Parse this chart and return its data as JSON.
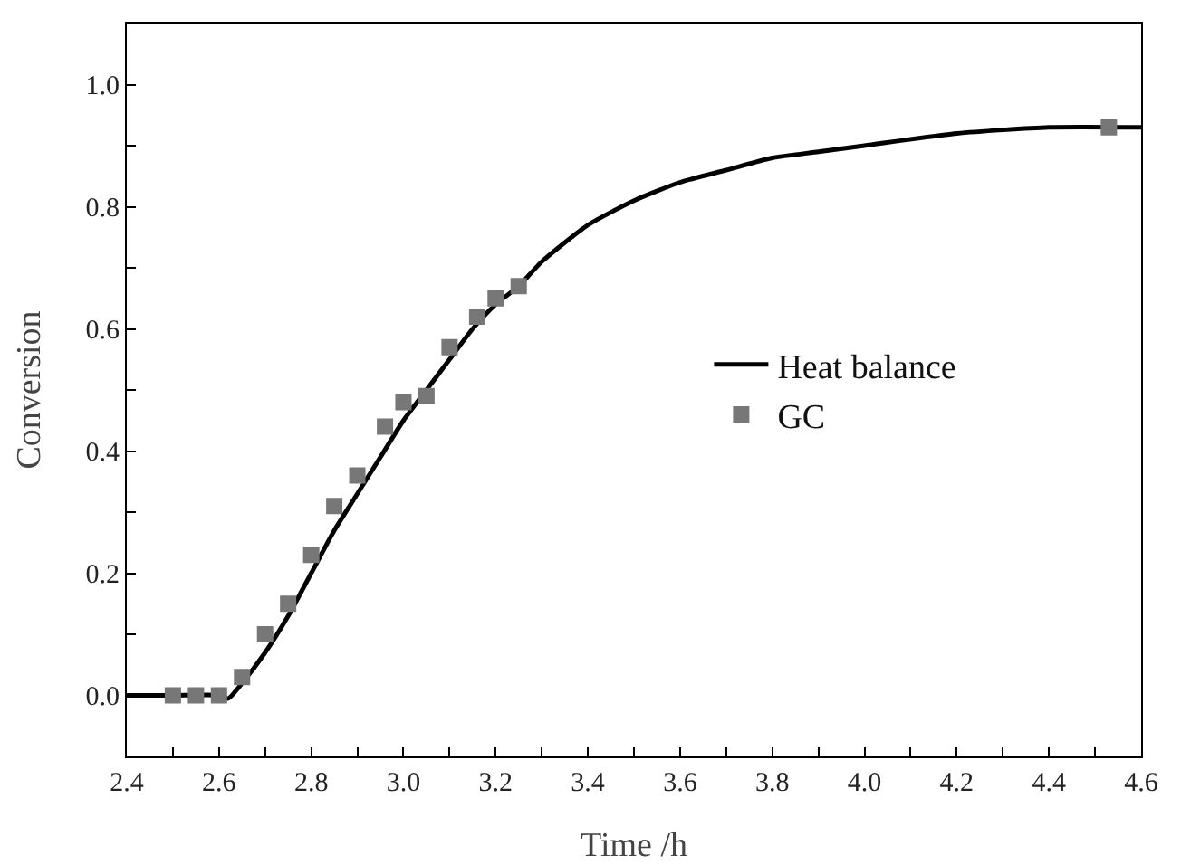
{
  "chart_data": {
    "type": "line",
    "xlabel": "Time /h",
    "ylabel": "Conversion",
    "xlim": [
      2.4,
      4.6
    ],
    "ylim": [
      -0.1,
      1.1
    ],
    "xticks": [
      {
        "value": 2.4,
        "label": "2.4"
      },
      {
        "value": 2.5,
        "label": null
      },
      {
        "value": 2.6,
        "label": "2.6"
      },
      {
        "value": 2.7,
        "label": null
      },
      {
        "value": 2.8,
        "label": "2.8"
      },
      {
        "value": 2.9,
        "label": null
      },
      {
        "value": 3.0,
        "label": "3.0"
      },
      {
        "value": 3.1,
        "label": null
      },
      {
        "value": 3.2,
        "label": "3.2"
      },
      {
        "value": 3.3,
        "label": null
      },
      {
        "value": 3.4,
        "label": "3.4"
      },
      {
        "value": 3.5,
        "label": null
      },
      {
        "value": 3.6,
        "label": "3.6"
      },
      {
        "value": 3.7,
        "label": null
      },
      {
        "value": 3.8,
        "label": "3.8"
      },
      {
        "value": 3.9,
        "label": null
      },
      {
        "value": 4.0,
        "label": "4.0"
      },
      {
        "value": 4.1,
        "label": null
      },
      {
        "value": 4.2,
        "label": "4.2"
      },
      {
        "value": 4.3,
        "label": null
      },
      {
        "value": 4.4,
        "label": "4.4"
      },
      {
        "value": 4.5,
        "label": null
      },
      {
        "value": 4.6,
        "label": "4.6"
      }
    ],
    "yticks": [
      {
        "value": -0.1,
        "label": null
      },
      {
        "value": 0.0,
        "label": "0.0"
      },
      {
        "value": 0.1,
        "label": null
      },
      {
        "value": 0.2,
        "label": "0.2"
      },
      {
        "value": 0.3,
        "label": null
      },
      {
        "value": 0.4,
        "label": "0.4"
      },
      {
        "value": 0.5,
        "label": null
      },
      {
        "value": 0.6,
        "label": "0.6"
      },
      {
        "value": 0.7,
        "label": null
      },
      {
        "value": 0.8,
        "label": "0.8"
      },
      {
        "value": 0.9,
        "label": null
      },
      {
        "value": 1.0,
        "label": "1.0"
      }
    ],
    "grid": false,
    "legend": "right",
    "series": [
      {
        "name": "Heat balance",
        "color": "#000000",
        "marker": "none",
        "line_style": "solid",
        "x": [
          2.4,
          2.5,
          2.6,
          2.62,
          2.65,
          2.7,
          2.75,
          2.8,
          2.85,
          2.9,
          2.95,
          3.0,
          3.05,
          3.1,
          3.15,
          3.2,
          3.25,
          3.3,
          3.4,
          3.5,
          3.6,
          3.7,
          3.8,
          3.9,
          4.0,
          4.2,
          4.4,
          4.6
        ],
        "values": [
          0,
          0,
          0,
          -0.005,
          0.02,
          0.07,
          0.13,
          0.2,
          0.27,
          0.33,
          0.39,
          0.45,
          0.5,
          0.55,
          0.6,
          0.64,
          0.67,
          0.71,
          0.77,
          0.81,
          0.84,
          0.86,
          0.88,
          0.89,
          0.9,
          0.92,
          0.93,
          0.93
        ]
      },
      {
        "name": "GC",
        "type": "scatter",
        "color": "#777777",
        "marker": "square",
        "x": [
          2.5,
          2.55,
          2.6,
          2.65,
          2.7,
          2.75,
          2.8,
          2.85,
          2.9,
          2.96,
          3.0,
          3.05,
          3.1,
          3.16,
          3.2,
          3.25,
          4.53
        ],
        "values": [
          0,
          0,
          0,
          0.03,
          0.1,
          0.15,
          0.23,
          0.31,
          0.36,
          0.44,
          0.48,
          0.49,
          0.57,
          0.62,
          0.65,
          0.67,
          0.93
        ]
      }
    ]
  }
}
